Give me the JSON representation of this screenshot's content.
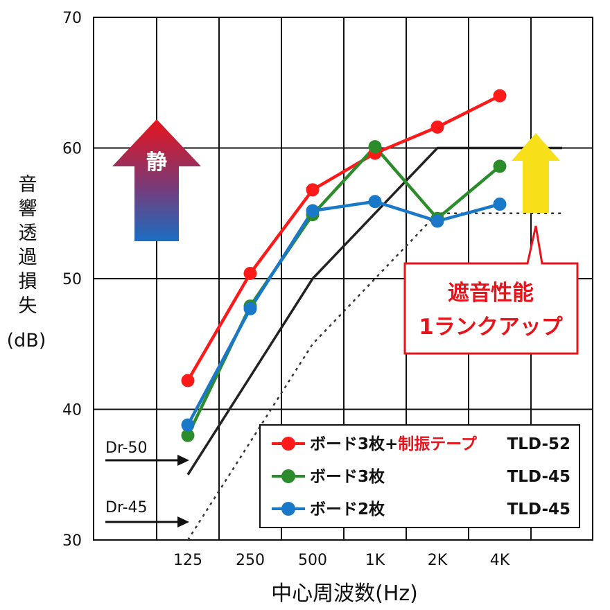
{
  "chart_data": {
    "type": "line",
    "categories": [
      "125",
      "250",
      "500",
      "1K",
      "2K",
      "4K"
    ],
    "ylabel": "音響透過損失",
    "yunit": "(dB)",
    "xlabel": "中心周波数(Hz)",
    "ylim": [
      30,
      70
    ],
    "yticks": [
      30,
      40,
      50,
      60,
      70
    ],
    "grid": true,
    "series": [
      {
        "name_part1": "ボード3枚+",
        "name_part2": "制振テープ",
        "rating": "TLD-52",
        "color": "#ff1a1a",
        "values": [
          42.2,
          50.4,
          56.8,
          59.6,
          61.6,
          64.0
        ]
      },
      {
        "name_part1": "ボード3枚",
        "rating": "TLD-45",
        "color": "#2c8c2c",
        "values": [
          38.0,
          47.9,
          54.9,
          60.1,
          54.6,
          58.6
        ]
      },
      {
        "name_part1": "ボード2枚",
        "rating": "TLD-45",
        "color": "#1a78c8",
        "values": [
          38.8,
          47.7,
          55.2,
          55.9,
          54.4,
          55.7
        ]
      }
    ],
    "reference_lines": [
      {
        "name": "Dr-50",
        "style": "solid",
        "color": "#222222",
        "points": [
          [
            0,
            35
          ],
          [
            2,
            50
          ],
          [
            4,
            60
          ],
          [
            6,
            60
          ]
        ]
      },
      {
        "name": "Dr-45",
        "style": "dotted",
        "color": "#333333",
        "points": [
          [
            0,
            30
          ],
          [
            2,
            45
          ],
          [
            4,
            55
          ],
          [
            6,
            55
          ]
        ]
      }
    ],
    "annotations": {
      "quiet_label": "静",
      "callout_line1": "遮音性能",
      "callout_line2": "1ランクアップ"
    },
    "legend_position": "bottom-right",
    "colors": {
      "callout": "#e8141b",
      "up_arrow": "#f7e01a"
    }
  }
}
